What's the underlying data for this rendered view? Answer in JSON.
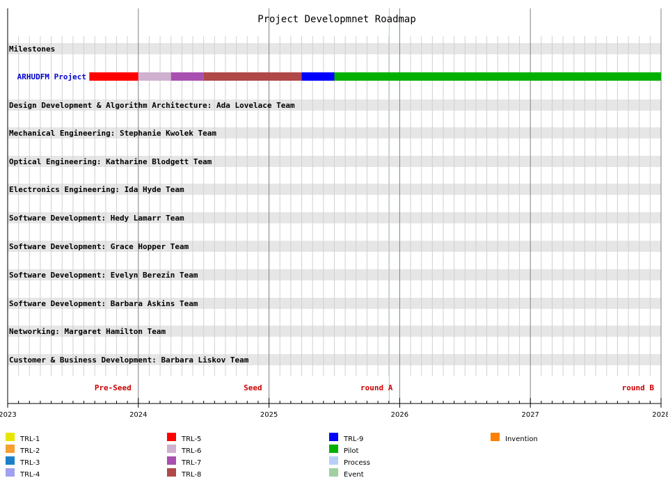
{
  "chart_data": {
    "type": "gantt",
    "title": "Project Developmnet Roadmap",
    "x_axis": {
      "start": 2023,
      "end": 2028,
      "ticks": [
        "2023",
        "2024",
        "2025",
        "2026",
        "2027",
        "2028"
      ],
      "minor_ticks_per_year": 12
    },
    "today_marker": 2025.92,
    "rows": [
      {
        "label": "Milestones",
        "kind": "band"
      },
      {
        "label": "ARHUDFM Project",
        "kind": "project"
      },
      {
        "label": "Design Development & Algorithm Architecture: Ada Lovelace Team",
        "kind": "band"
      },
      {
        "label": "Mechanical Engineering: Stephanie Kwolek Team",
        "kind": "band"
      },
      {
        "label": "Optical Engineering: Katharine Blodgett Team",
        "kind": "band"
      },
      {
        "label": "Electronics Engineering: Ida Hyde Team",
        "kind": "band"
      },
      {
        "label": "Software Development: Hedy Lamarr Team",
        "kind": "band"
      },
      {
        "label": "Software Development: Grace Hopper Team",
        "kind": "band"
      },
      {
        "label": "Software Development: Evelyn Berezin Team",
        "kind": "band"
      },
      {
        "label": "Software Development: Barbara Askins Team",
        "kind": "band"
      },
      {
        "label": "Networking: Margaret Hamilton Team",
        "kind": "band"
      },
      {
        "label": "Customer & Business Development: Barbara Liskov Team",
        "kind": "band"
      }
    ],
    "project_segments": [
      {
        "phase": "TRL-5",
        "start": 2023.625,
        "end": 2024.0
      },
      {
        "phase": "TRL-6",
        "start": 2024.0,
        "end": 2024.25
      },
      {
        "phase": "TRL-7",
        "start": 2024.25,
        "end": 2024.5
      },
      {
        "phase": "TRL-8",
        "start": 2024.5,
        "end": 2025.25
      },
      {
        "phase": "TRL-9",
        "start": 2025.25,
        "end": 2025.5
      },
      {
        "phase": "Pilot",
        "start": 2025.5,
        "end": 2028.0
      }
    ],
    "funding_milestones": [
      {
        "label": "Pre-Seed",
        "date": 2024.0
      },
      {
        "label": "Seed",
        "date": 2025.0
      },
      {
        "label": "round A",
        "date": 2026.0
      },
      {
        "label": "round B",
        "date": 2028.0
      }
    ],
    "legend": [
      {
        "label": "TRL-1",
        "color": "#e6e600"
      },
      {
        "label": "TRL-2",
        "color": "#f5a030"
      },
      {
        "label": "TRL-3",
        "color": "#1a80c8"
      },
      {
        "label": "TRL-4",
        "color": "#a0a0f0"
      },
      {
        "label": "TRL-5",
        "color": "#ff0000"
      },
      {
        "label": "TRL-6",
        "color": "#cfb0cf"
      },
      {
        "label": "TRL-7",
        "color": "#a850b0"
      },
      {
        "label": "TRL-8",
        "color": "#b04848"
      },
      {
        "label": "TRL-9",
        "color": "#0000ff"
      },
      {
        "label": "Pilot",
        "color": "#00b000"
      },
      {
        "label": "Process",
        "color": "#b8d0f8"
      },
      {
        "label": "Event",
        "color": "#a0d0a0"
      },
      {
        "label": "Invention",
        "color": "#ff8000"
      }
    ],
    "colors": {
      "band": "#e6e6e6",
      "major_grid": "#808080",
      "minor_grid": "#d0d0d0",
      "today_line": "#a0d8a0",
      "milestone_text": "#cc0000",
      "project_text": "#0000cc"
    }
  }
}
